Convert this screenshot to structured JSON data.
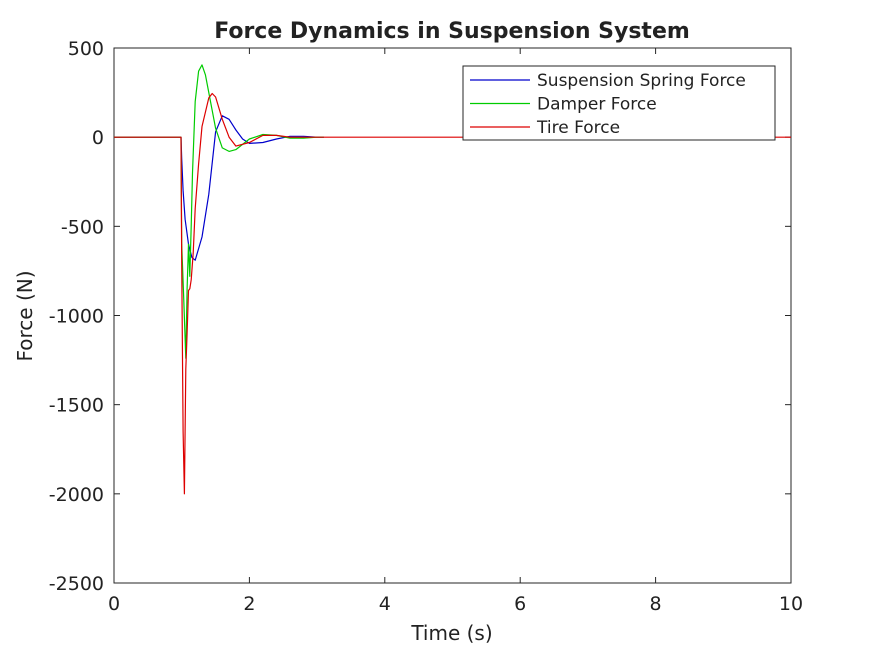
{
  "chart_data": {
    "type": "line",
    "title": "Force Dynamics in Suspension System",
    "xlabel": "Time (s)",
    "ylabel": "Force (N)",
    "xlim": [
      0,
      10
    ],
    "ylim": [
      -2500,
      500
    ],
    "xticks": [
      0,
      2,
      4,
      6,
      8,
      10
    ],
    "yticks": [
      500,
      0,
      -500,
      -1000,
      -1500,
      -2000,
      -2500
    ],
    "xtick_labels": [
      "0",
      "2",
      "4",
      "6",
      "8",
      "10"
    ],
    "ytick_labels": [
      "500",
      "0",
      "-500",
      "-1000",
      "-1500",
      "-2000",
      "-2500"
    ],
    "grid": false,
    "legend_position": "top-right",
    "series": [
      {
        "name": "Suspension Spring Force",
        "color": "#0000cc",
        "x": [
          0,
          0.99,
          1.0,
          1.02,
          1.05,
          1.1,
          1.15,
          1.2,
          1.3,
          1.4,
          1.5,
          1.6,
          1.7,
          1.8,
          1.9,
          2.0,
          2.2,
          2.4,
          2.6,
          2.8,
          3.0,
          3.1
        ],
        "y": [
          0,
          0,
          -120,
          -300,
          -460,
          -600,
          -675,
          -690,
          -560,
          -320,
          30,
          120,
          100,
          40,
          -10,
          -35,
          -30,
          -10,
          5,
          5,
          0,
          0
        ]
      },
      {
        "name": "Damper Force",
        "color": "#00cc00",
        "x": [
          0,
          0.99,
          1.0,
          1.03,
          1.06,
          1.08,
          1.1,
          1.12,
          1.14,
          1.16,
          1.2,
          1.25,
          1.3,
          1.35,
          1.4,
          1.5,
          1.6,
          1.7,
          1.8,
          2.0,
          2.2,
          2.4,
          2.6,
          2.8,
          3.0,
          3.1
        ],
        "y": [
          0,
          0,
          -600,
          -900,
          -1240,
          -850,
          -600,
          -780,
          -500,
          -200,
          200,
          370,
          405,
          350,
          250,
          50,
          -60,
          -80,
          -70,
          -10,
          15,
          10,
          -5,
          -5,
          0,
          0
        ]
      },
      {
        "name": "Tire Force",
        "color": "#dd0000",
        "x": [
          0,
          0.99,
          1.0,
          1.02,
          1.04,
          1.06,
          1.08,
          1.1,
          1.12,
          1.14,
          1.17,
          1.2,
          1.25,
          1.3,
          1.4,
          1.45,
          1.5,
          1.6,
          1.7,
          1.8,
          2.0,
          2.2,
          2.4,
          2.6,
          2.8,
          3.0,
          3.2,
          10
        ],
        "y": [
          0,
          0,
          -700,
          -1650,
          -2000,
          -1300,
          -1100,
          -860,
          -850,
          -800,
          -650,
          -400,
          -150,
          60,
          220,
          245,
          225,
          100,
          0,
          -50,
          -30,
          10,
          10,
          0,
          0,
          0,
          0,
          0
        ]
      }
    ]
  }
}
